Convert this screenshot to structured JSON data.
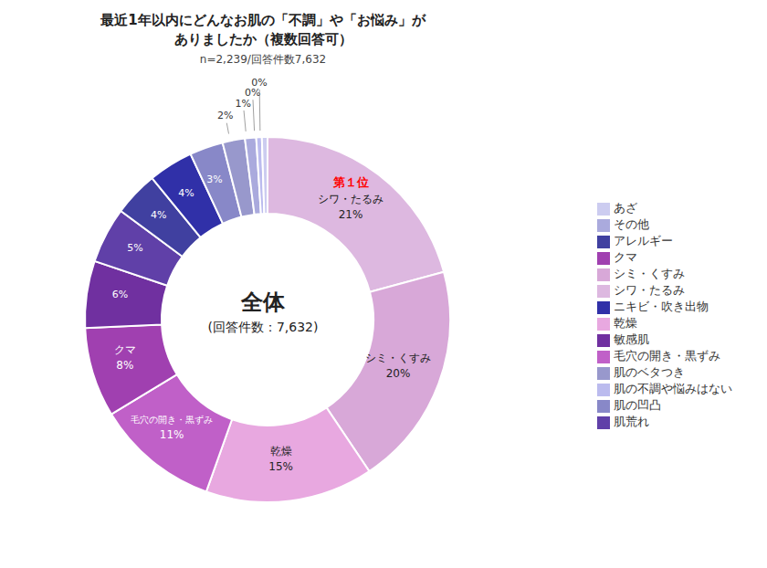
{
  "chart_data": {
    "type": "pie",
    "donut": true,
    "title": [
      "最近1年以内にどんなお肌の「不調」や「お悩み」が",
      "ありましたか（複数回答可）"
    ],
    "subtitle": "n=2,239/回答件数7,632",
    "annotations": [
      "全体",
      "(回答件数：7,632)",
      "第１位"
    ],
    "categories": [
      "シワ・たるみ",
      "シミ・くすみ",
      "乾燥",
      "毛穴の開き・黒ずみ",
      "クマ",
      "敏感肌",
      "肌荒れ",
      "アレルギー",
      "ニキビ・吹き出物",
      "肌の凹凸",
      "肌のベタつき",
      "その他",
      "肌の不調や悩みはない",
      "あざ"
    ],
    "values": [
      21,
      20,
      15,
      11,
      8,
      6,
      5,
      4,
      4,
      3,
      2,
      1,
      0.5,
      0.5
    ],
    "value_labels": [
      "21%",
      "20%",
      "15%",
      "11%",
      "8%",
      "6%",
      "5%",
      "4%",
      "4%",
      "3%",
      "2%",
      "1%",
      "0%",
      "0%"
    ],
    "colors": [
      "#DDB8E0",
      "#D8A8D8",
      "#E8A8E0",
      "#C060C8",
      "#A040B0",
      "#7030A0",
      "#6040A8",
      "#4040A0",
      "#3030A8",
      "#8888C8",
      "#9898CC",
      "#AAAADD",
      "#BBBBEE",
      "#CCCCF0"
    ],
    "legend": "right",
    "data_labels": true
  }
}
